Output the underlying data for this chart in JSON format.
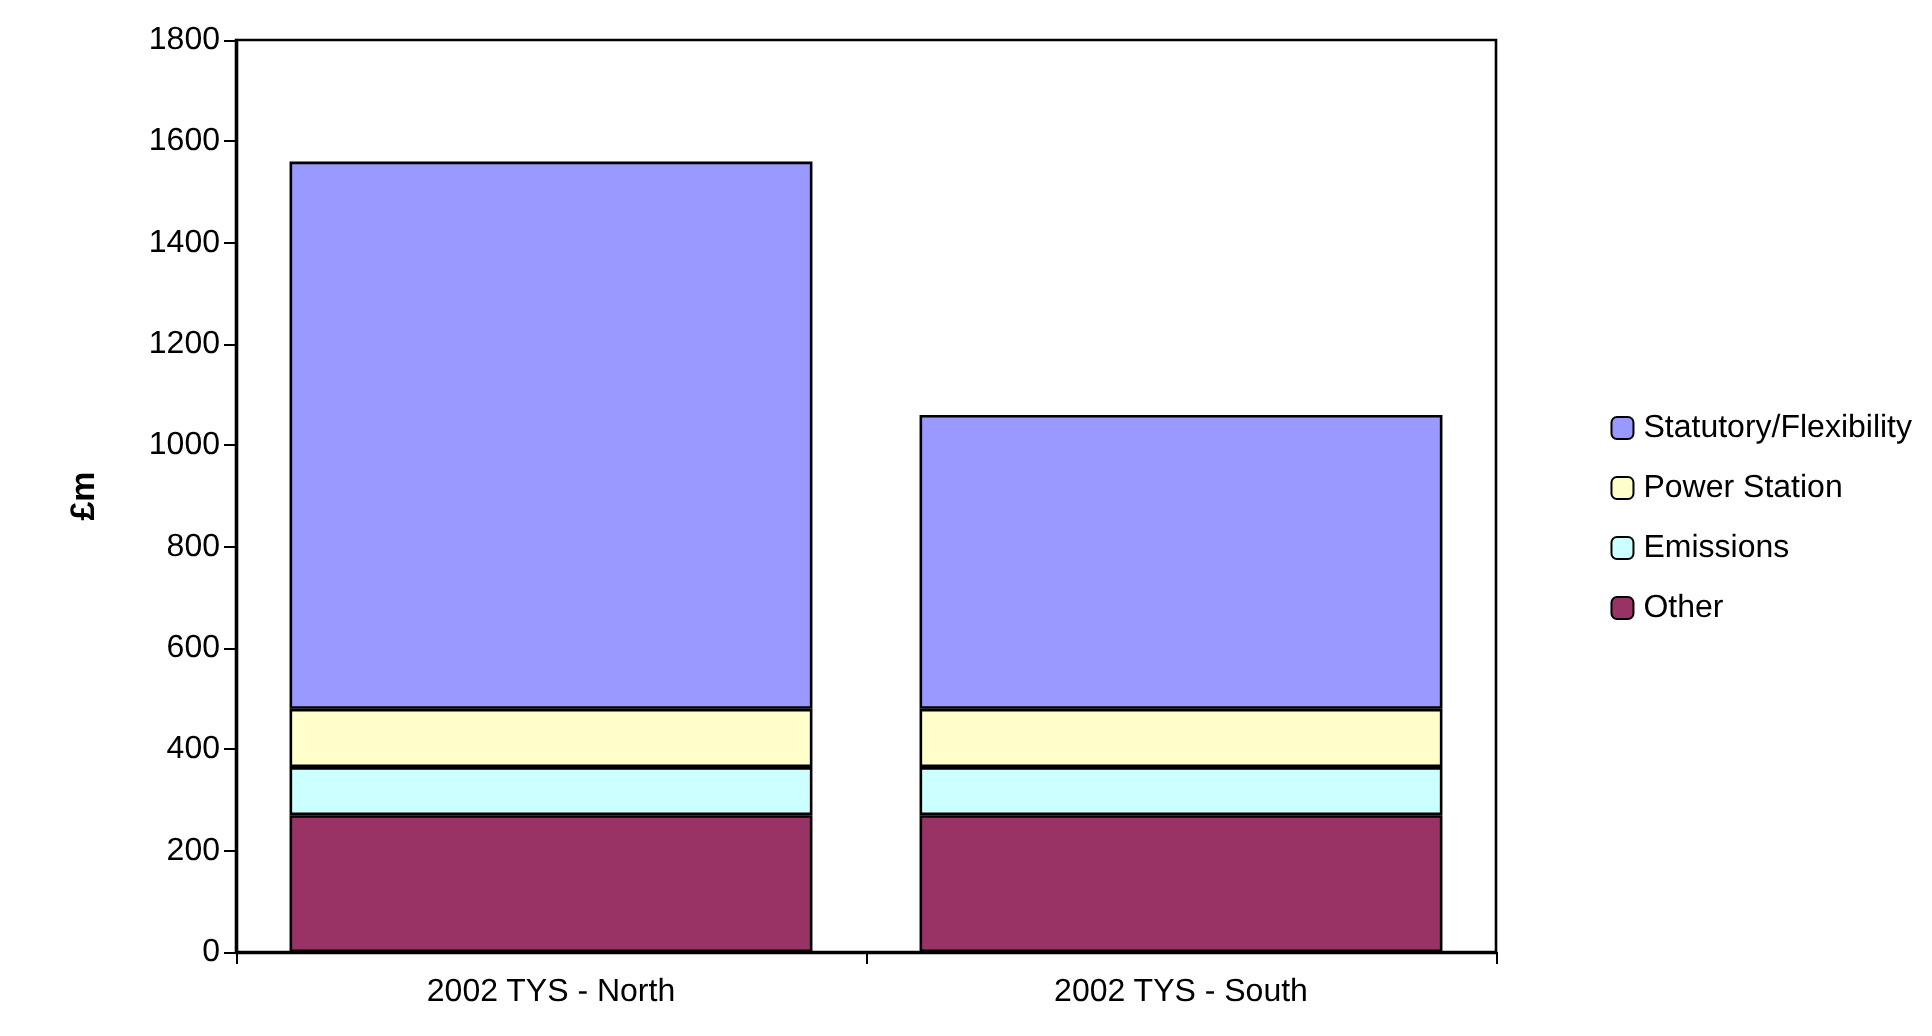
{
  "chart_data": {
    "type": "bar",
    "ylabel": "£m",
    "categories": [
      "2002 TYS - North",
      "2002 TYS - South"
    ],
    "series": [
      {
        "name": "Other",
        "color": "#993366",
        "values": [
          270,
          270
        ]
      },
      {
        "name": "Emissions",
        "color": "#ccffff",
        "values": [
          95,
          95
        ]
      },
      {
        "name": "Power Station",
        "color": "#ffffcc",
        "values": [
          115,
          115
        ]
      },
      {
        "name": "Statutory/Flexibility",
        "color": "#9999ff",
        "values": [
          1080,
          580
        ]
      }
    ],
    "stacked": true,
    "ylim": [
      0,
      1800
    ],
    "yticks": [
      0,
      200,
      400,
      600,
      800,
      1000,
      1200,
      1400,
      1600,
      1800
    ],
    "grid": false,
    "legend": "right"
  }
}
